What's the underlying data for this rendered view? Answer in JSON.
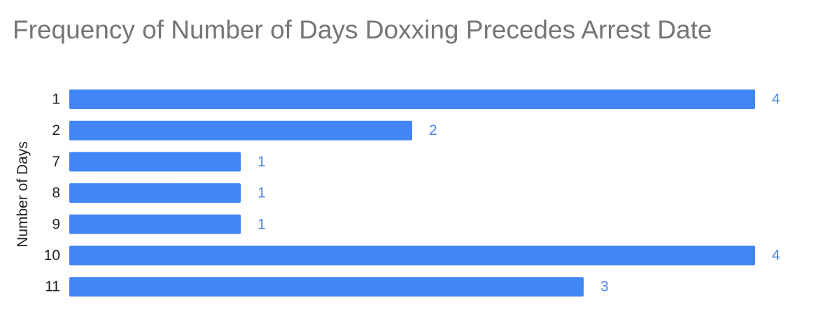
{
  "chart_data": {
    "type": "bar",
    "orientation": "horizontal",
    "title": "Frequency of Number of Days Doxxing Precedes Arrest Date",
    "ylabel": "Number of Days",
    "xlabel": "",
    "categories": [
      "1",
      "2",
      "7",
      "8",
      "9",
      "10",
      "11"
    ],
    "values": [
      4,
      2,
      1,
      1,
      1,
      4,
      3
    ],
    "xlim": [
      0,
      4
    ],
    "grid": false,
    "legend": "none",
    "bar_color": "#4285f4",
    "label_color": "#4a86e8"
  }
}
